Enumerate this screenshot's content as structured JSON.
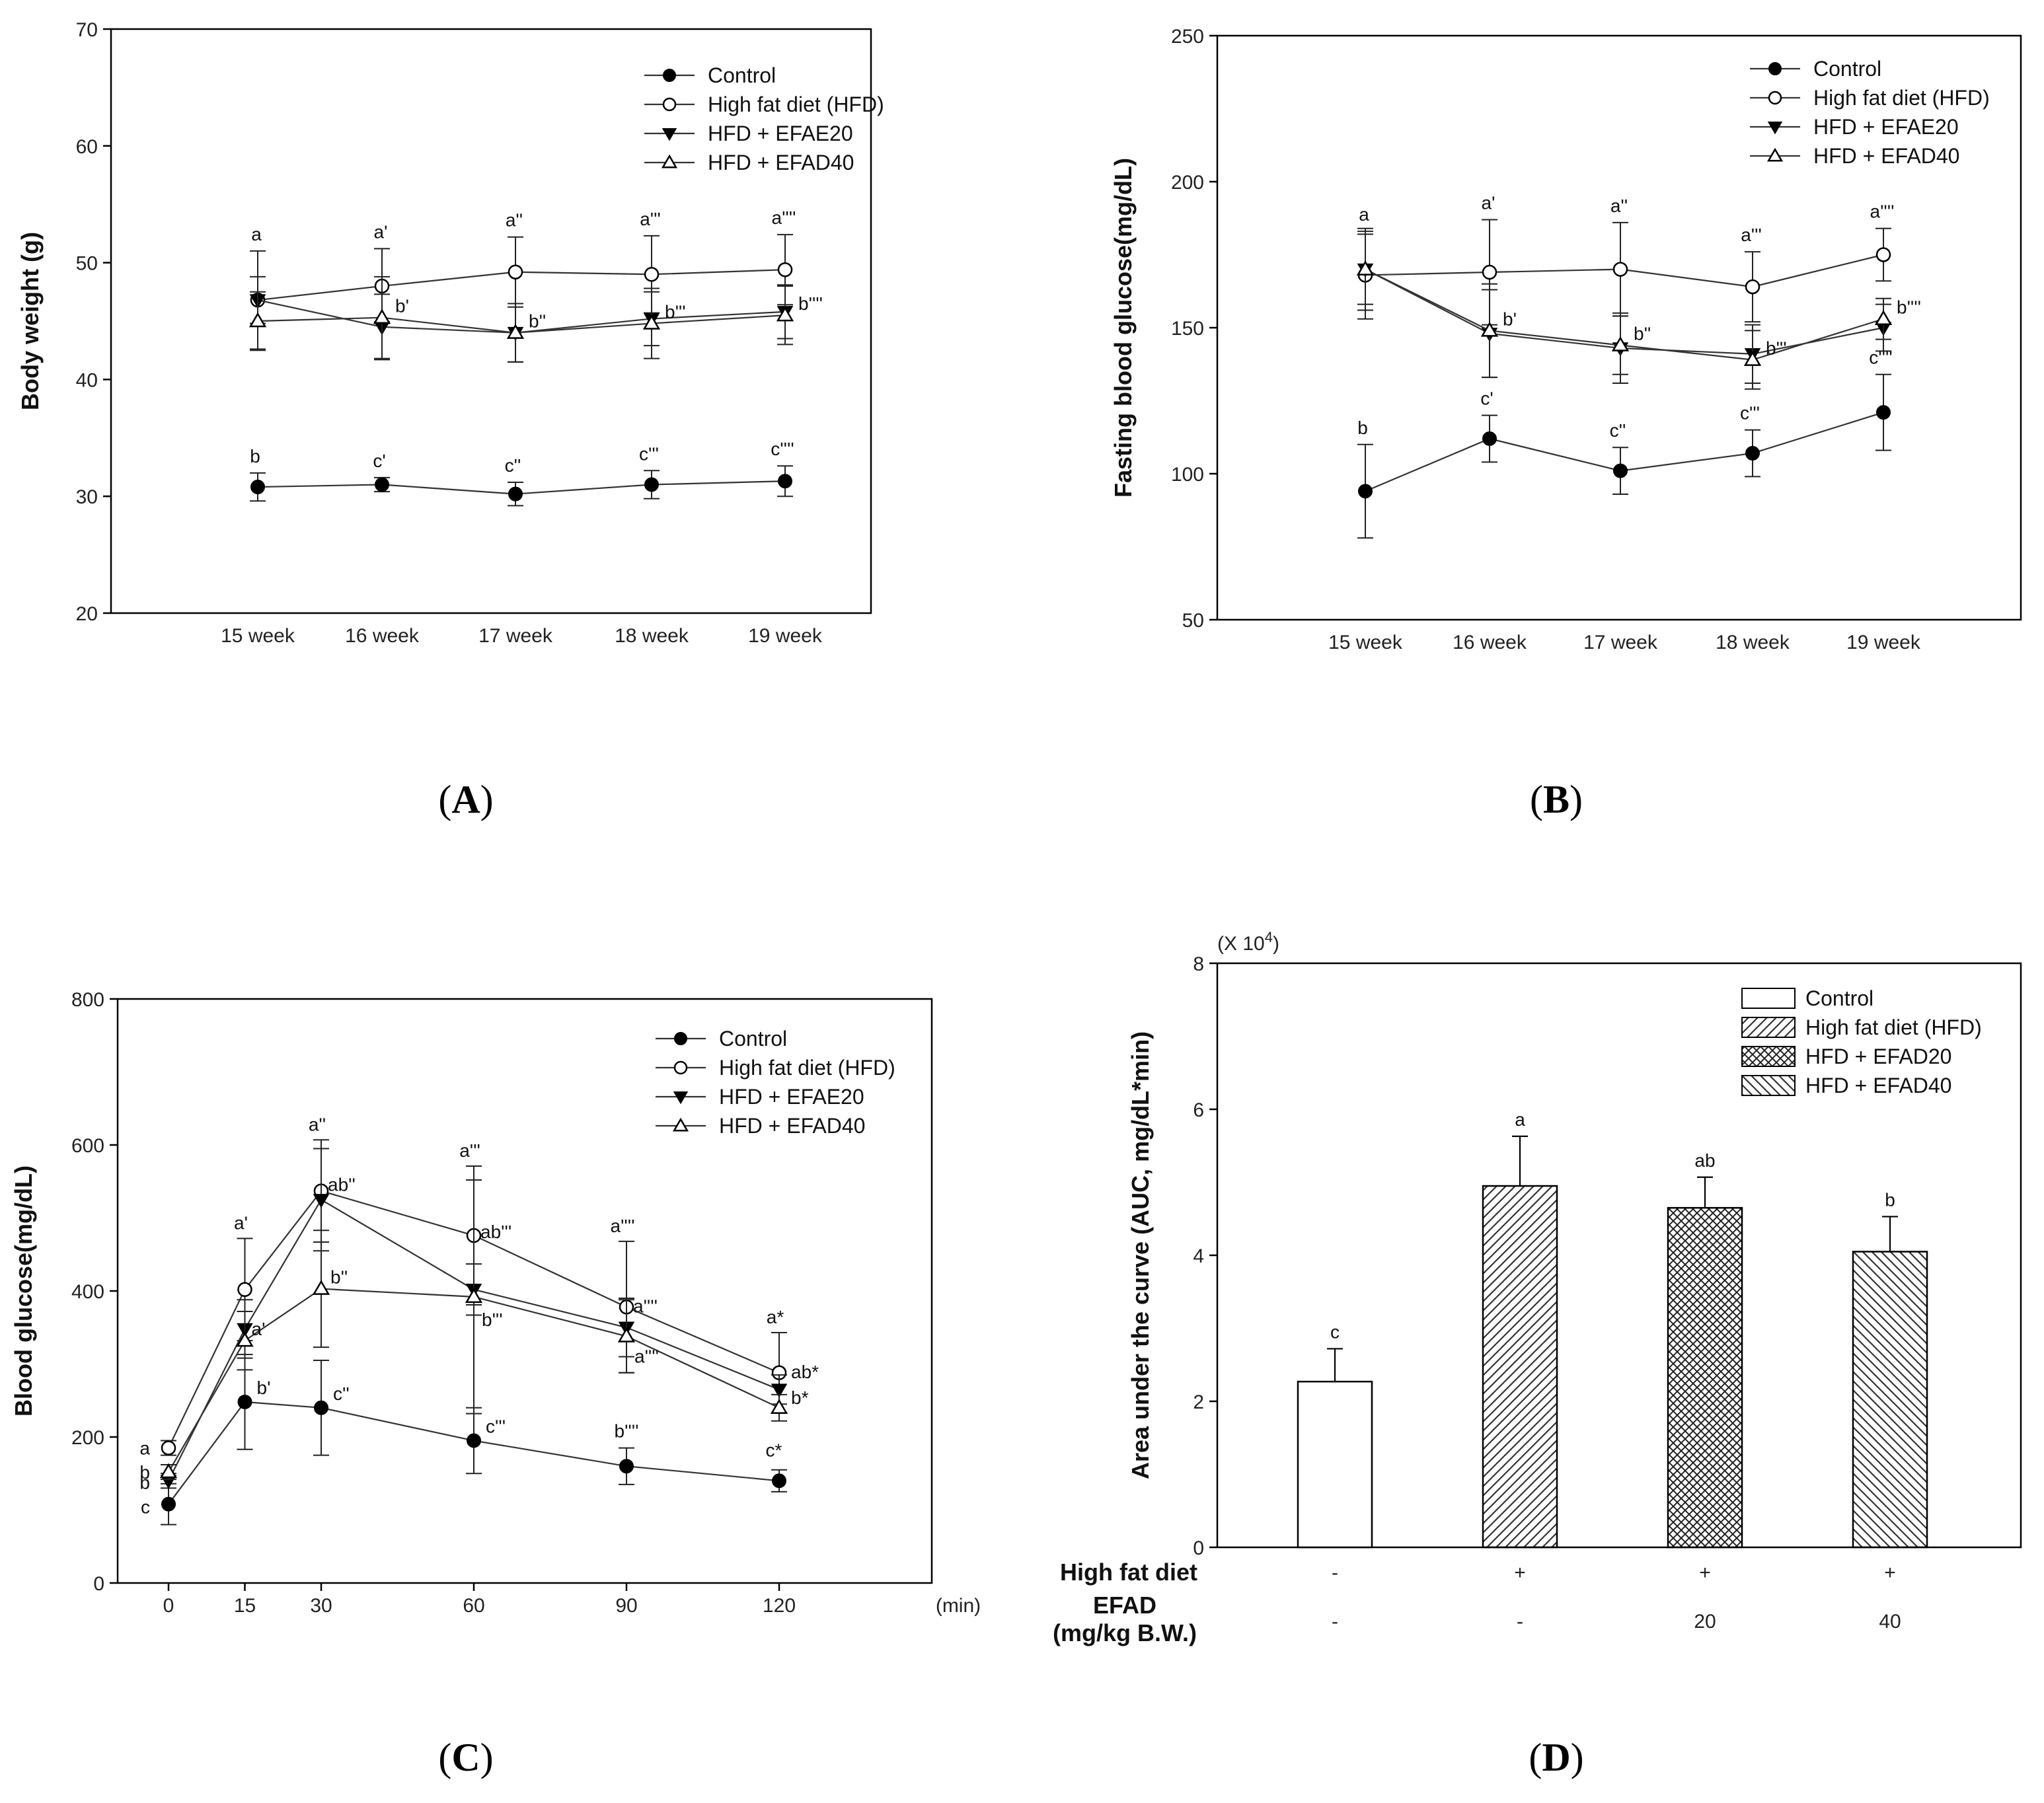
{
  "chart_data": [
    {
      "panel": "A",
      "type": "line",
      "title": "",
      "ylabel": "Body weight (g)",
      "xlabel": "",
      "ylim": [
        20,
        70
      ],
      "yticks": [
        20,
        30,
        40,
        50,
        60,
        70
      ],
      "categories": [
        "15 week",
        "16 week",
        "17 week",
        "18 week",
        "19 week"
      ],
      "legend_location": "top-right",
      "series": [
        {
          "name": "Control",
          "marker": "circle-filled",
          "values": [
            30.8,
            31.0,
            30.2,
            31.0,
            31.3
          ],
          "errors": [
            1.2,
            0.6,
            1.0,
            1.2,
            1.3
          ],
          "labels": [
            "b",
            "c'",
            "c''",
            "c'''",
            "c''''"
          ]
        },
        {
          "name": "High fat diet (HFD)",
          "marker": "circle-open",
          "values": [
            46.8,
            48.0,
            49.2,
            49.0,
            49.4
          ],
          "errors": [
            4.2,
            3.2,
            3.0,
            3.3,
            3.0
          ],
          "labels": [
            "a",
            "a'",
            "a''",
            "a'''",
            "a''''"
          ]
        },
        {
          "name": "HFD + EFAE20",
          "marker": "triangle-down-filled",
          "values": [
            46.8,
            44.5,
            44.0,
            45.2,
            45.8
          ],
          "errors": [
            2.0,
            2.8,
            2.5,
            2.3,
            2.3
          ],
          "labels": [
            "",
            "",
            "",
            "",
            ""
          ]
        },
        {
          "name": "HFD + EFAD40",
          "marker": "triangle-up-open",
          "values": [
            45.0,
            45.3,
            44.0,
            44.8,
            45.5
          ],
          "errors": [
            2.5,
            3.5,
            2.5,
            3.0,
            2.5
          ],
          "labels": [
            "",
            "b'",
            "b''",
            "b'''",
            "b''''"
          ]
        }
      ]
    },
    {
      "panel": "B",
      "type": "line",
      "title": "",
      "ylabel": "Fasting blood glucose(mg/dL)",
      "xlabel": "",
      "ylim": [
        50,
        250
      ],
      "yticks": [
        50,
        100,
        150,
        200,
        250
      ],
      "categories": [
        "15 week",
        "16 week",
        "17 week",
        "18 week",
        "19 week"
      ],
      "legend_location": "top-right",
      "series": [
        {
          "name": "Control",
          "marker": "circle-filled",
          "values": [
            94,
            112,
            101,
            107,
            121
          ],
          "errors": [
            16,
            8,
            8,
            8,
            13
          ],
          "labels": [
            "b",
            "c'",
            "c''",
            "c'''",
            "c''''"
          ]
        },
        {
          "name": "High fat diet (HFD)",
          "marker": "circle-open",
          "values": [
            168,
            169,
            170,
            164,
            175
          ],
          "errors": [
            15,
            18,
            16,
            12,
            9
          ],
          "labels": [
            "a",
            "a'",
            "a''",
            "a'''",
            "a''''"
          ]
        },
        {
          "name": "HFD + EFAE20",
          "marker": "triangle-down-filled",
          "values": [
            170,
            148,
            143,
            141,
            150
          ],
          "errors": [
            12,
            15,
            12,
            10,
            8
          ],
          "labels": [
            "",
            "",
            "",
            "",
            ""
          ]
        },
        {
          "name": "HFD + EFAD40",
          "marker": "triangle-up-open",
          "values": [
            170,
            149,
            144,
            139,
            153
          ],
          "errors": [
            14,
            16,
            10,
            10,
            7
          ],
          "labels": [
            "",
            "b'",
            "b''",
            "b'''",
            "b''''"
          ]
        }
      ]
    },
    {
      "panel": "C",
      "type": "line",
      "title": "",
      "ylabel": "Blood glucose(mg/dL)",
      "xlabel": "(min)",
      "ylim": [
        0,
        800
      ],
      "yticks": [
        0,
        200,
        400,
        600,
        800
      ],
      "x": [
        0,
        15,
        30,
        60,
        90,
        120
      ],
      "xlim": [
        -10,
        150
      ],
      "legend_location": "top-right",
      "series": [
        {
          "name": "Control",
          "marker": "circle-filled",
          "values": [
            108,
            248,
            240,
            195,
            160,
            140
          ],
          "errors": [
            28,
            65,
            65,
            45,
            25,
            15
          ],
          "labels": [
            "c",
            "b'",
            "c''",
            "c'''",
            "b''''",
            "c*"
          ]
        },
        {
          "name": "High fat diet (HFD)",
          "marker": "circle-open",
          "values": [
            185,
            402,
            537,
            476,
            378,
            288
          ],
          "errors": [
            10,
            70,
            70,
            95,
            90,
            55
          ],
          "labels": [
            "a",
            "a'",
            "a''",
            "a'''",
            "a''''",
            "a*"
          ]
        },
        {
          "name": "HFD + EFAE20",
          "marker": "triangle-down-filled",
          "values": [
            140,
            348,
            525,
            402,
            350,
            265
          ],
          "errors": [
            10,
            40,
            70,
            35,
            40,
            20
          ],
          "labels": [
            "b",
            "",
            "ab''",
            "ab'''",
            "a''''",
            "ab*"
          ]
        },
        {
          "name": "HFD + EFAD40",
          "marker": "triangle-up-open",
          "values": [
            152,
            332,
            403,
            392,
            338,
            240
          ],
          "errors": [
            10,
            40,
            80,
            160,
            50,
            18
          ],
          "labels": [
            "b",
            "a'",
            "b''",
            "b'''",
            "a''''",
            "b*"
          ]
        }
      ]
    },
    {
      "panel": "D",
      "type": "bar",
      "title": "",
      "ylabel": "Area under the curve (AUC, mg/dL*min)",
      "yscale_label": "(X 10",
      "yscale_exp": "4",
      "ylim": [
        0,
        8
      ],
      "yticks": [
        0,
        2,
        4,
        6,
        8
      ],
      "categories": [
        "Control",
        "High fat diet (HFD)",
        "HFD + EFAD20",
        "HFD + EFAD40"
      ],
      "values": [
        2.27,
        4.95,
        4.65,
        4.05
      ],
      "errors": [
        0.45,
        0.68,
        0.42,
        0.48
      ],
      "labels": [
        "c",
        "a",
        "ab",
        "b"
      ],
      "patterns": [
        "none",
        "diag-right",
        "crosshatch",
        "diag-left"
      ],
      "legend_location": "top-right",
      "row_labels": [
        "High fat diet",
        "EFAD",
        "(mg/kg B.W.)"
      ],
      "hfd_row": [
        "-",
        "+",
        "+",
        "+"
      ],
      "efad_row": [
        "-",
        "-",
        "20",
        "40"
      ]
    }
  ],
  "panel_labels": {
    "A": {
      "open": "(",
      "letter": "A",
      "close": ")"
    },
    "B": {
      "open": "(",
      "letter": "B",
      "close": ")"
    },
    "C": {
      "open": "(",
      "letter": "C",
      "close": ")"
    },
    "D": {
      "open": "(",
      "letter": "D",
      "close": ")"
    }
  }
}
